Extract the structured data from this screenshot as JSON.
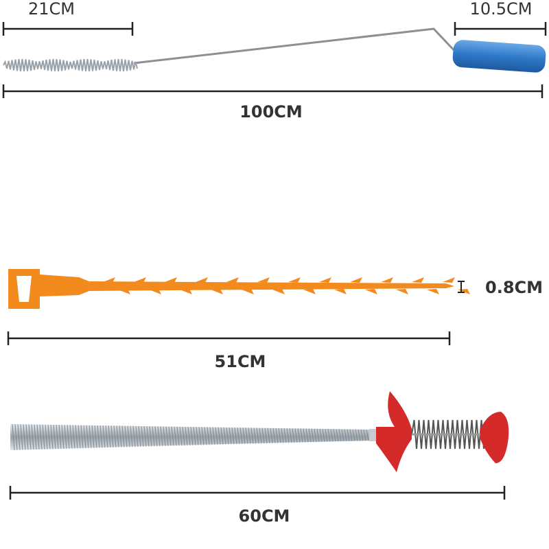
{
  "tools": [
    {
      "head_length": "21CM",
      "handle_length": "10.5CM",
      "total_length": "100CM"
    },
    {
      "width": "0.8CM",
      "total_length": "51CM"
    },
    {
      "total_length": "60CM"
    }
  ]
}
